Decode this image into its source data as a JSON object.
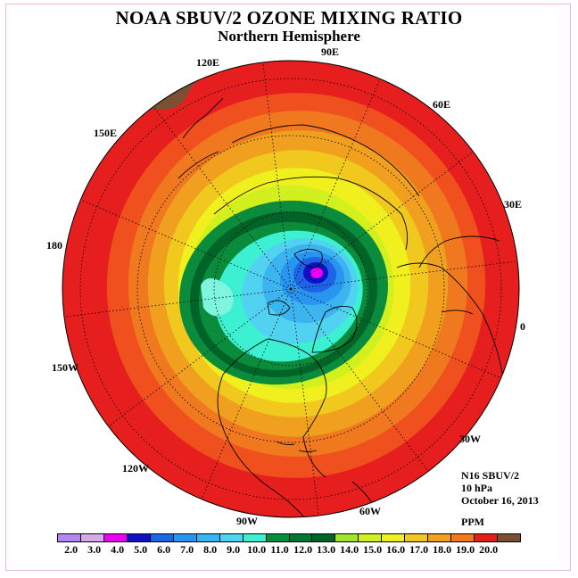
{
  "title": "NOAA SBUV/2 OZONE MIXING RATIO",
  "subtitle": "Northern Hemisphere",
  "info": {
    "instrument": "N16 SBUV/2",
    "level": "10 hPa",
    "date": "October 16, 2013",
    "units": "PPM"
  },
  "longitude_labels": [
    "90E",
    "60E",
    "30E",
    "0",
    "30W",
    "60W",
    "90W",
    "120W",
    "150W",
    "180",
    "150E",
    "120E"
  ],
  "colorbar": {
    "ticks": [
      "2.0",
      "3.0",
      "4.0",
      "5.0",
      "6.0",
      "7.0",
      "8.0",
      "9.0",
      "10.0",
      "11.0",
      "12.0",
      "13.0",
      "14.0",
      "15.0",
      "16.0",
      "17.0",
      "18.0",
      "19.0",
      "20.0"
    ],
    "colors": [
      "#b487f0",
      "#d7a9ea",
      "#f000f0",
      "#1010c8",
      "#1e64e6",
      "#2896f0",
      "#3cb4f0",
      "#50d2f0",
      "#3cf0d2",
      "#0a8c3c",
      "#007832",
      "#006428",
      "#a0e628",
      "#d2f01e",
      "#f0f01e",
      "#f0c81e",
      "#f0a01e",
      "#f0781e",
      "#e61e1e",
      "#7a4f32"
    ]
  },
  "map_data": {
    "projection": "north-polar-stereographic",
    "ozone_bands": [
      {
        "value": 20.0,
        "color": "#7a4f32"
      },
      {
        "value": 19.0,
        "color": "#e61e1e"
      },
      {
        "value": 18.0,
        "color": "#f0501e"
      },
      {
        "value": 17.0,
        "color": "#f0781e"
      },
      {
        "value": 16.0,
        "color": "#f0a01e"
      },
      {
        "value": 15.0,
        "color": "#f0c81e"
      },
      {
        "value": 14.0,
        "color": "#f0f01e"
      },
      {
        "value": 13.0,
        "color": "#d2f01e"
      },
      {
        "value": 12.5,
        "color": "#a0e628"
      },
      {
        "value": 12.0,
        "color": "#0a8c3c"
      },
      {
        "value": 11.0,
        "color": "#006428"
      },
      {
        "value": 10.0,
        "color": "#0a8c3c"
      },
      {
        "value": 9.0,
        "color": "#3cf0d2"
      },
      {
        "value": 8.0,
        "color": "#50d2f0"
      },
      {
        "value": 7.0,
        "color": "#3cb4f0"
      },
      {
        "value": 6.0,
        "color": "#2896f0"
      },
      {
        "value": 5.0,
        "color": "#1e64e6"
      },
      {
        "value": 4.0,
        "color": "#1010c8"
      },
      {
        "value": 3.0,
        "color": "#f000f0"
      }
    ]
  }
}
